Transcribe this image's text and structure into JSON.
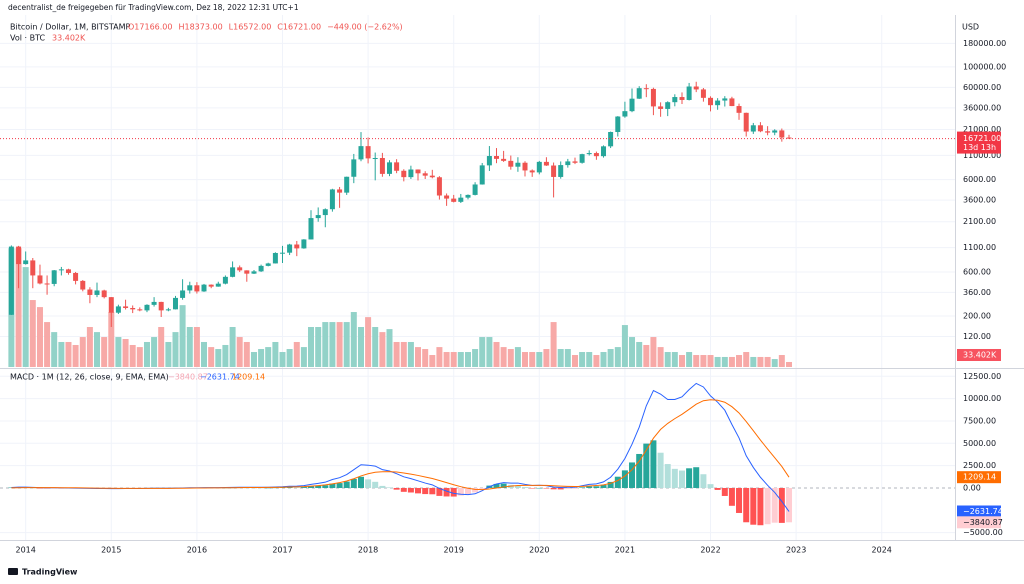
{
  "header": {
    "attribution": "decentralist_de freigegeben für TradingView.com, Dez 18, 2022 12:31 UTC+1",
    "logo": "TradingView"
  },
  "chart_data": {
    "type": "candlestick",
    "symbol": "Bitcoin / Dollar, 1M, BITSTAMP",
    "ohlc_text": [
      "O17166.00",
      "H18373.00",
      "L16572.00",
      "C16721.00",
      "−449.00 (−2.62%)"
    ],
    "volume_title": "Vol · BTC",
    "volume_label": "33.402K",
    "currency": "USD",
    "last_price_label": "16721.00",
    "countdown": "13d 13h",
    "log_scale": true,
    "grid": true,
    "up_color": "#26a69a",
    "down_color": "#ef5350",
    "volume_up_color": "#92d2c8",
    "volume_down_color": "#f7a9a7",
    "x": [
      2013.833,
      2013.917,
      2014,
      2014.083,
      2014.167,
      2014.25,
      2014.333,
      2014.417,
      2014.5,
      2014.583,
      2014.667,
      2014.75,
      2014.833,
      2014.917,
      2015,
      2015.083,
      2015.167,
      2015.25,
      2015.333,
      2015.417,
      2015.5,
      2015.583,
      2015.667,
      2015.75,
      2015.833,
      2015.917,
      2016,
      2016.083,
      2016.167,
      2016.25,
      2016.333,
      2016.417,
      2016.5,
      2016.583,
      2016.667,
      2016.75,
      2016.833,
      2016.917,
      2017,
      2017.083,
      2017.167,
      2017.25,
      2017.333,
      2017.417,
      2017.5,
      2017.583,
      2017.667,
      2017.75,
      2017.833,
      2017.917,
      2018,
      2018.083,
      2018.167,
      2018.25,
      2018.333,
      2018.417,
      2018.5,
      2018.583,
      2018.667,
      2018.75,
      2018.833,
      2018.917,
      2019,
      2019.083,
      2019.167,
      2019.25,
      2019.333,
      2019.417,
      2019.5,
      2019.583,
      2019.667,
      2019.75,
      2019.833,
      2019.917,
      2020,
      2020.083,
      2020.167,
      2020.25,
      2020.333,
      2020.417,
      2020.5,
      2020.583,
      2020.667,
      2020.75,
      2020.833,
      2020.917,
      2021,
      2021.083,
      2021.167,
      2021.25,
      2021.333,
      2021.417,
      2021.5,
      2021.583,
      2021.667,
      2021.75,
      2021.833,
      2021.917,
      2022,
      2022.083,
      2022.167,
      2022.25,
      2022.333,
      2022.417,
      2022.5,
      2022.583,
      2022.667,
      2022.75,
      2022.833,
      2022.917
    ],
    "xlim": [
      2013.7,
      2024.856
    ],
    "xticks": [
      2014,
      2015,
      2016,
      2017,
      2018,
      2019,
      2020,
      2021,
      2022,
      2023,
      2024
    ],
    "candles": [
      [
        206,
        1163,
        205,
        1130
      ],
      [
        1130,
        1150,
        400,
        730
      ],
      [
        730,
        1000,
        720,
        800
      ],
      [
        800,
        850,
        400,
        550
      ],
      [
        550,
        720,
        440,
        450
      ],
      [
        450,
        550,
        340,
        445
      ],
      [
        445,
        630,
        420,
        625
      ],
      [
        625,
        680,
        550,
        640
      ],
      [
        640,
        650,
        560,
        585
      ],
      [
        585,
        600,
        440,
        480
      ],
      [
        480,
        490,
        370,
        387
      ],
      [
        387,
        410,
        275,
        338
      ],
      [
        338,
        460,
        320,
        378
      ],
      [
        378,
        385,
        310,
        320
      ],
      [
        320,
        320,
        152,
        217
      ],
      [
        217,
        265,
        210,
        254
      ],
      [
        254,
        300,
        235,
        244
      ],
      [
        244,
        260,
        215,
        236
      ],
      [
        236,
        248,
        225,
        230
      ],
      [
        230,
        268,
        220,
        264
      ],
      [
        264,
        320,
        253,
        284
      ],
      [
        284,
        285,
        195,
        230
      ],
      [
        230,
        245,
        225,
        236
      ],
      [
        236,
        330,
        235,
        314
      ],
      [
        314,
        500,
        300,
        378
      ],
      [
        378,
        470,
        350,
        430
      ],
      [
        430,
        465,
        350,
        369
      ],
      [
        369,
        445,
        365,
        437
      ],
      [
        437,
        440,
        400,
        416
      ],
      [
        416,
        470,
        415,
        448
      ],
      [
        448,
        550,
        440,
        531
      ],
      [
        531,
        780,
        525,
        673
      ],
      [
        673,
        705,
        600,
        624
      ],
      [
        624,
        625,
        470,
        575
      ],
      [
        575,
        630,
        570,
        609
      ],
      [
        609,
        720,
        600,
        698
      ],
      [
        698,
        755,
        690,
        742
      ],
      [
        742,
        980,
        740,
        963
      ],
      [
        963,
        1150,
        750,
        970
      ],
      [
        970,
        1210,
        915,
        1190
      ],
      [
        1190,
        1300,
        890,
        1080
      ],
      [
        1080,
        1360,
        1070,
        1350
      ],
      [
        1350,
        2800,
        1350,
        2300
      ],
      [
        2300,
        3000,
        2100,
        2480
      ],
      [
        2480,
        2930,
        1830,
        2870
      ],
      [
        2870,
        4780,
        2700,
        4700
      ],
      [
        4700,
        5000,
        2970,
        4340
      ],
      [
        4340,
        6470,
        4100,
        6450
      ],
      [
        6450,
        11400,
        5500,
        9950
      ],
      [
        9950,
        19666,
        9500,
        13850
      ],
      [
        13850,
        17200,
        9000,
        10200
      ],
      [
        10200,
        11800,
        5900,
        10300
      ],
      [
        10300,
        11700,
        6450,
        6930
      ],
      [
        6930,
        9750,
        6550,
        9240
      ],
      [
        9240,
        10000,
        7050,
        7490
      ],
      [
        7490,
        7780,
        5750,
        6390
      ],
      [
        6390,
        8500,
        6100,
        7730
      ],
      [
        7730,
        7750,
        5880,
        7030
      ],
      [
        7030,
        7410,
        6100,
        6630
      ],
      [
        6630,
        7670,
        6200,
        6370
      ],
      [
        6370,
        6550,
        3650,
        4040
      ],
      [
        4040,
        4250,
        3120,
        3740
      ],
      [
        3740,
        4100,
        3400,
        3450
      ],
      [
        3450,
        4200,
        3350,
        3830
      ],
      [
        3830,
        4150,
        3670,
        4100
      ],
      [
        4100,
        5630,
        4050,
        5320
      ],
      [
        5320,
        9100,
        5300,
        8570
      ],
      [
        8570,
        13880,
        7450,
        10820
      ],
      [
        10820,
        13200,
        9050,
        10080
      ],
      [
        10080,
        12300,
        9350,
        9590
      ],
      [
        9590,
        10950,
        7700,
        8290
      ],
      [
        8290,
        10500,
        7300,
        9150
      ],
      [
        9150,
        9500,
        6500,
        7550
      ],
      [
        7550,
        7750,
        6430,
        7190
      ],
      [
        7190,
        9580,
        6850,
        9350
      ],
      [
        9350,
        10500,
        8450,
        8540
      ],
      [
        8540,
        9200,
        3850,
        6420
      ],
      [
        6420,
        9450,
        6150,
        8630
      ],
      [
        8630,
        10070,
        8100,
        9460
      ],
      [
        9460,
        10400,
        8850,
        9140
      ],
      [
        9140,
        11450,
        8950,
        11340
      ],
      [
        11340,
        12470,
        10950,
        11650
      ],
      [
        11650,
        12080,
        9850,
        10780
      ],
      [
        10780,
        14100,
        10400,
        13780
      ],
      [
        13780,
        19900,
        13200,
        19700
      ],
      [
        19700,
        29300,
        17600,
        28990
      ],
      [
        28990,
        41950,
        28100,
        33140
      ],
      [
        33140,
        58350,
        32300,
        45240
      ],
      [
        45240,
        61780,
        44950,
        58800
      ],
      [
        58800,
        64900,
        47000,
        57720
      ],
      [
        57720,
        59500,
        30000,
        37300
      ],
      [
        37300,
        41300,
        28800,
        35040
      ],
      [
        35040,
        42400,
        29300,
        41460
      ],
      [
        41460,
        50500,
        37400,
        47130
      ],
      [
        47130,
        52900,
        39600,
        43820
      ],
      [
        43820,
        67000,
        43300,
        61300
      ],
      [
        61300,
        69000,
        53300,
        57000
      ],
      [
        57000,
        59050,
        42000,
        46200
      ],
      [
        46200,
        47990,
        32950,
        38480
      ],
      [
        38480,
        45850,
        34300,
        43170
      ],
      [
        43170,
        48200,
        37200,
        45540
      ],
      [
        45540,
        47450,
        37580,
        37640
      ],
      [
        37640,
        40000,
        26700,
        31790
      ],
      [
        31790,
        31950,
        17600,
        19930
      ],
      [
        19930,
        24700,
        18780,
        23300
      ],
      [
        23300,
        25200,
        19600,
        20050
      ],
      [
        20050,
        22800,
        18150,
        19420
      ],
      [
        19420,
        21100,
        18200,
        20490
      ],
      [
        20490,
        21480,
        15480,
        17170
      ],
      [
        17166,
        18373,
        16572,
        16721
      ]
    ],
    "ylim": [
      56,
      365000
    ],
    "yticks": [
      {
        "value": 180000,
        "label": "180000.00"
      },
      {
        "value": 100000,
        "label": "100000.00"
      },
      {
        "value": 60000,
        "label": "60000.00"
      },
      {
        "value": 36000,
        "label": "36000.00"
      },
      {
        "value": 21000,
        "label": "21000.00"
      },
      {
        "value": 11000,
        "label": "11000.00"
      },
      {
        "value": 6000,
        "label": "6000.00"
      },
      {
        "value": 3600,
        "label": "3600.00"
      },
      {
        "value": 2100,
        "label": "2100.00"
      },
      {
        "value": 1100,
        "label": "1100.00"
      },
      {
        "value": 600,
        "label": "600.00"
      },
      {
        "value": 360,
        "label": "360.00"
      },
      {
        "value": 200,
        "label": "200.00"
      },
      {
        "value": 120,
        "label": "120.00"
      }
    ],
    "volume": [
      793000,
      793000,
      667000,
      447000,
      400000,
      300000,
      233000,
      167000,
      167000,
      147000,
      200000,
      267000,
      233000,
      200000,
      367000,
      200000,
      187000,
      147000,
      133000,
      167000,
      200000,
      267000,
      167000,
      233000,
      413000,
      267000,
      267000,
      167000,
      133000,
      120000,
      147000,
      267000,
      200000,
      167000,
      100000,
      120000,
      133000,
      167000,
      100000,
      120000,
      167000,
      133000,
      267000,
      267000,
      300000,
      300000,
      300000,
      300000,
      367000,
      267000,
      333000,
      267000,
      233000,
      253000,
      167000,
      167000,
      167000,
      133000,
      120000,
      80000,
      133000,
      100000,
      100000,
      100000,
      100000,
      120000,
      200000,
      200000,
      167000,
      133000,
      120000,
      133000,
      100000,
      100000,
      100000,
      120000,
      300000,
      120000,
      120000,
      80000,
      100000,
      100000,
      80000,
      100000,
      120000,
      133000,
      280000,
      200000,
      167000,
      147000,
      200000,
      133000,
      100000,
      100000,
      80000,
      100000,
      80000,
      80000,
      80000,
      67000,
      67000,
      67000,
      80000,
      100000,
      67000,
      67000,
      67000,
      53000,
      80000,
      33402
    ],
    "volume_ylim": [
      0,
      2350000
    ],
    "macd_title": "MACD · 1M (12, 26, close, 9, EMA, EMA)",
    "macd_labels": {
      "hist": "−3840.87",
      "macd": "−2631.74",
      "signal": "1209.14"
    },
    "macd_color": "#2962ff",
    "signal_color": "#ff6d00",
    "hist_colors": [
      "#26a69a",
      "#b2dfdb",
      "#ffcdd2",
      "#ff5252"
    ],
    "macd": [
      60,
      90,
      100,
      70,
      40,
      20,
      20,
      15,
      5,
      -10,
      -30,
      -50,
      -55,
      -65,
      -75,
      -70,
      -65,
      -60,
      -55,
      -45,
      -35,
      -32,
      -28,
      -15,
      5,
      25,
      30,
      35,
      35,
      40,
      50,
      70,
      75,
      75,
      75,
      80,
      85,
      110,
      140,
      190,
      210,
      260,
      400,
      520,
      650,
      950,
      1150,
      1500,
      2050,
      2600,
      2550,
      2450,
      2050,
      1900,
      1600,
      1250,
      1050,
      800,
      550,
      350,
      -50,
      -350,
      -600,
      -700,
      -740,
      -650,
      -300,
      150,
      450,
      600,
      550,
      550,
      400,
      280,
      300,
      260,
      100,
      50,
      80,
      80,
      250,
      400,
      460,
      680,
      1200,
      2100,
      3300,
      4900,
      6800,
      9200,
      10900,
      10500,
      9900,
      9900,
      10200,
      11000,
      11700,
      11300,
      10300,
      9600,
      8700,
      7100,
      5600,
      3600,
      2300,
      1200,
      300,
      -500,
      -1500,
      -2631.74
    ],
    "signal": [
      10,
      25,
      40,
      46,
      45,
      40,
      36,
      32,
      27,
      19,
      9,
      -3,
      -13,
      -23,
      -34,
      -41,
      -46,
      -49,
      -50,
      -49,
      -46,
      -43,
      -40,
      -35,
      -27,
      -16,
      -7,
      1,
      8,
      14,
      21,
      31,
      40,
      47,
      52,
      58,
      63,
      72,
      86,
      107,
      128,
      154,
      203,
      266,
      343,
      464,
      601,
      781,
      1035,
      1348,
      1589,
      1761,
      1819,
      1835,
      1788,
      1680,
      1554,
      1403,
      1232,
      1056,
      835,
      598,
      358,
      146,
      -31,
      -155,
      -184,
      -117,
      -4,
      117,
      204,
      273,
      298,
      294,
      295,
      288,
      250,
      210,
      184,
      163,
      180,
      224,
      271,
      353,
      522,
      838,
      1330,
      2044,
      2995,
      4236,
      5569,
      6555,
      7224,
      7759,
      8247,
      8798,
      9378,
      9762,
      9870,
      9816,
      9593,
      9094,
      8395,
      7436,
      6409,
      5367,
      4354,
      3383,
      2406,
      1209.14
    ],
    "hist": [
      50,
      65,
      60,
      24,
      -5,
      -20,
      -16,
      -17,
      -22,
      -29,
      -39,
      -47,
      -42,
      -42,
      -41,
      -29,
      -19,
      -11,
      -5,
      4,
      11,
      11,
      12,
      20,
      32,
      41,
      37,
      34,
      27,
      26,
      29,
      39,
      35,
      28,
      23,
      22,
      22,
      38,
      54,
      83,
      82,
      106,
      197,
      254,
      307,
      486,
      549,
      719,
      1015,
      1252,
      961,
      689,
      231,
      65,
      -188,
      -430,
      -504,
      -603,
      -682,
      -706,
      -885,
      -948,
      -958,
      -846,
      -709,
      -495,
      -116,
      267,
      454,
      483,
      346,
      277,
      102,
      -14,
      5,
      -28,
      -150,
      -160,
      -104,
      -83,
      70,
      176,
      189,
      327,
      678,
      1262,
      1970,
      2856,
      3805,
      4964,
      5331,
      3945,
      2676,
      2141,
      1953,
      2202,
      2322,
      1538,
      430,
      -216,
      -893,
      -1994,
      -2795,
      -3836,
      -4109,
      -4167,
      -4054,
      -3883,
      -3906,
      -3840.87
    ],
    "macd_ylim": [
      -5820,
      13200
    ],
    "macd_yticks": [
      {
        "value": 12500,
        "label": "12500.00"
      },
      {
        "value": 10000,
        "label": "10000.00"
      },
      {
        "value": 7500,
        "label": "7500.00"
      },
      {
        "value": 5000,
        "label": "5000.00"
      },
      {
        "value": 2500,
        "label": "2500.00"
      },
      {
        "value": 0,
        "label": "0.00"
      },
      {
        "value": -5000,
        "label": "−5000.00"
      }
    ]
  }
}
